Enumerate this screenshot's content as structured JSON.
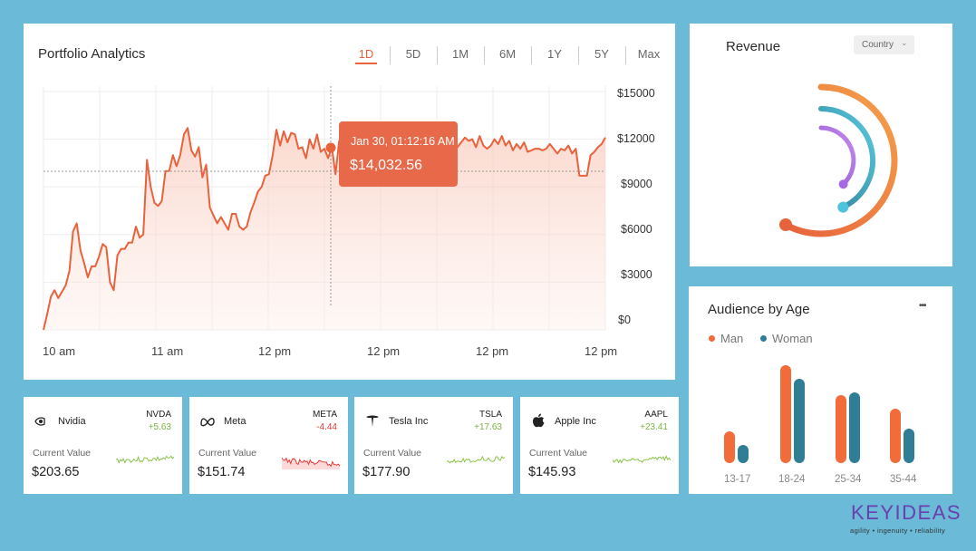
{
  "portfolio": {
    "title": "Portfolio Analytics",
    "ranges": [
      "1D",
      "5D",
      "1M",
      "6M",
      "1Y",
      "5Y",
      "Max"
    ],
    "active_range": "1D",
    "y_ticks": [
      "$15000",
      "$12000",
      "$9000",
      "$6000",
      "$3000",
      "$0"
    ],
    "x_ticks": [
      "10 am",
      "11 am",
      "12 pm",
      "12 pm",
      "12 pm",
      "12 pm"
    ],
    "tooltip": {
      "time": "Jan 30, 01:12:16 AM",
      "value": "$14,032.56"
    },
    "accent": "#E8623C"
  },
  "chart_data": [
    {
      "type": "area",
      "title": "Portfolio Analytics",
      "xlabel": "",
      "ylabel": "",
      "ylim": [
        0,
        15000
      ],
      "grid": true,
      "values": [
        0,
        1000,
        2100,
        2500,
        2000,
        2400,
        2800,
        3700,
        6200,
        6700,
        5000,
        4200,
        3300,
        4000,
        4000,
        4600,
        5400,
        5200,
        3000,
        2500,
        4700,
        5100,
        5100,
        5500,
        5500,
        6500,
        5800,
        6000,
        10700,
        9000,
        8000,
        7800,
        8100,
        10000,
        10000,
        11000,
        10300,
        11000,
        12300,
        12700,
        11300,
        10900,
        11500,
        9600,
        10400,
        7700,
        7200,
        6700,
        7100,
        6700,
        6300,
        7300,
        7300,
        6500,
        6300,
        6500,
        7400,
        8000,
        8700,
        9000,
        9700,
        9800,
        11000,
        12600,
        11600,
        12500,
        11800,
        12400,
        12300,
        11400,
        11500,
        10800,
        12000,
        11400,
        12300,
        11200,
        11400,
        10800,
        11500,
        9800,
        11900,
        12000,
        11000,
        11000,
        9500,
        9500,
        9700,
        9400,
        10300,
        11200,
        11000,
        11800,
        12000,
        12600,
        11700,
        10700,
        11200,
        11900,
        11400,
        12400,
        12600,
        12600,
        11600,
        12100,
        12600,
        11700,
        12100,
        12800,
        12700,
        11600,
        12600,
        11400,
        11500,
        11800,
        12100,
        11900,
        12000,
        11500,
        12200,
        11600,
        11400,
        11600,
        12000,
        11700,
        12200,
        11600,
        11900,
        11300,
        11700,
        11400,
        11800,
        11200,
        11300,
        11400,
        11400,
        11300,
        11400,
        11700,
        11400,
        11100,
        11400,
        11300,
        11600,
        11100,
        11400,
        9700,
        9700,
        9700,
        11000,
        11200,
        11500,
        11700,
        12100
      ]
    },
    {
      "type": "bar",
      "title": "Audience by Age",
      "categories": [
        "13-17",
        "18-24",
        "25-34",
        "35-44"
      ],
      "series": [
        {
          "name": "Man",
          "values": [
            35,
            108,
            75,
            60
          ],
          "color": "#F26B3A"
        },
        {
          "name": "Woman",
          "values": [
            20,
            93,
            78,
            38
          ],
          "color": "#2F7E96"
        }
      ],
      "ylim": [
        0,
        110
      ],
      "legend": "top-left"
    },
    {
      "type": "radial",
      "title": "Revenue",
      "series": [
        {
          "name": "",
          "values": [
            0.58
          ],
          "color": "#E8623C"
        },
        {
          "name": "",
          "values": [
            0.43
          ],
          "color": "#4FC3DB"
        },
        {
          "name": "",
          "values": [
            0.38
          ],
          "color": "#A66BE0"
        }
      ]
    }
  ],
  "revenue": {
    "title": "Revenue",
    "filter": "Country"
  },
  "audience": {
    "title": "Audience by Age",
    "legend_man": "Man",
    "legend_woman": "Woman",
    "more": "•••"
  },
  "stocks": [
    {
      "name": "Nvidia",
      "ticker": "NVDA",
      "change": "+5.63",
      "label": "Current Value",
      "value": "$203.65",
      "trend": "up",
      "color": "#8BC34A"
    },
    {
      "name": "Meta",
      "ticker": "META",
      "change": "-4.44",
      "label": "Current Value",
      "value": "$151.74",
      "trend": "down",
      "color": "#E53935"
    },
    {
      "name": "Tesla Inc",
      "ticker": "TSLA",
      "change": "+17.63",
      "label": "Current Value",
      "value": "$177.90",
      "trend": "up",
      "color": "#8BC34A"
    },
    {
      "name": "Apple Inc",
      "ticker": "AAPL",
      "change": "+23.41",
      "label": "Current Value",
      "value": "$145.93",
      "trend": "up",
      "color": "#8BC34A"
    }
  ],
  "brand": {
    "name": "KEYIDEAS",
    "tagline": "agility • ingenuity • reliability"
  }
}
